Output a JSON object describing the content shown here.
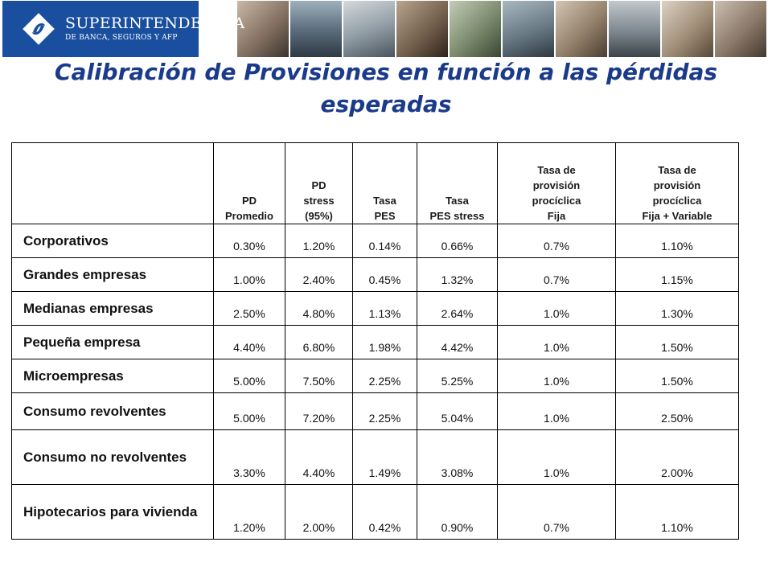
{
  "brand": {
    "name": "SUPERINTENDENCIA",
    "subtitle": "DE BANCA, SEGUROS Y AFP",
    "color": "#1a4fa0"
  },
  "title": "Calibración de Provisiones en función a las pérdidas esperadas",
  "title_color": "#1a3a8a",
  "table": {
    "headers": [
      [
        ""
      ],
      [
        "PD",
        "Promedio"
      ],
      [
        "PD",
        "stress",
        "(95%)"
      ],
      [
        "Tasa",
        "PES"
      ],
      [
        "Tasa",
        "PES stress"
      ],
      [
        "Tasa de",
        "provisión",
        "procíclica",
        "Fija"
      ],
      [
        "Tasa de",
        "provisión",
        "procíclica",
        "Fija + Variable"
      ]
    ],
    "rows": [
      {
        "label": "Corporativos",
        "values": [
          "0.30%",
          "1.20%",
          "0.14%",
          "0.66%",
          "0.7%",
          "1.10%"
        ]
      },
      {
        "label": "Grandes empresas",
        "values": [
          "1.00%",
          "2.40%",
          "0.45%",
          "1.32%",
          "0.7%",
          "1.15%"
        ]
      },
      {
        "label": "Medianas empresas",
        "values": [
          "2.50%",
          "4.80%",
          "1.13%",
          "2.64%",
          "1.0%",
          "1.30%"
        ]
      },
      {
        "label": "Pequeña empresa",
        "values": [
          "4.40%",
          "6.80%",
          "1.98%",
          "4.42%",
          "1.0%",
          "1.50%"
        ]
      },
      {
        "label": "Microempresas",
        "values": [
          "5.00%",
          "7.50%",
          "2.25%",
          "5.25%",
          "1.0%",
          "1.50%"
        ]
      },
      {
        "label": "Consumo revolventes",
        "values": [
          "5.00%",
          "7.20%",
          "2.25%",
          "5.04%",
          "1.0%",
          "2.50%"
        ]
      },
      {
        "label": "Consumo no revolventes",
        "values": [
          "3.30%",
          "4.40%",
          "1.49%",
          "3.08%",
          "1.0%",
          "2.00%"
        ]
      },
      {
        "label": "Hipotecarios para vivienda",
        "values": [
          "1.20%",
          "2.00%",
          "0.42%",
          "0.90%",
          "0.7%",
          "1.10%"
        ]
      }
    ]
  }
}
